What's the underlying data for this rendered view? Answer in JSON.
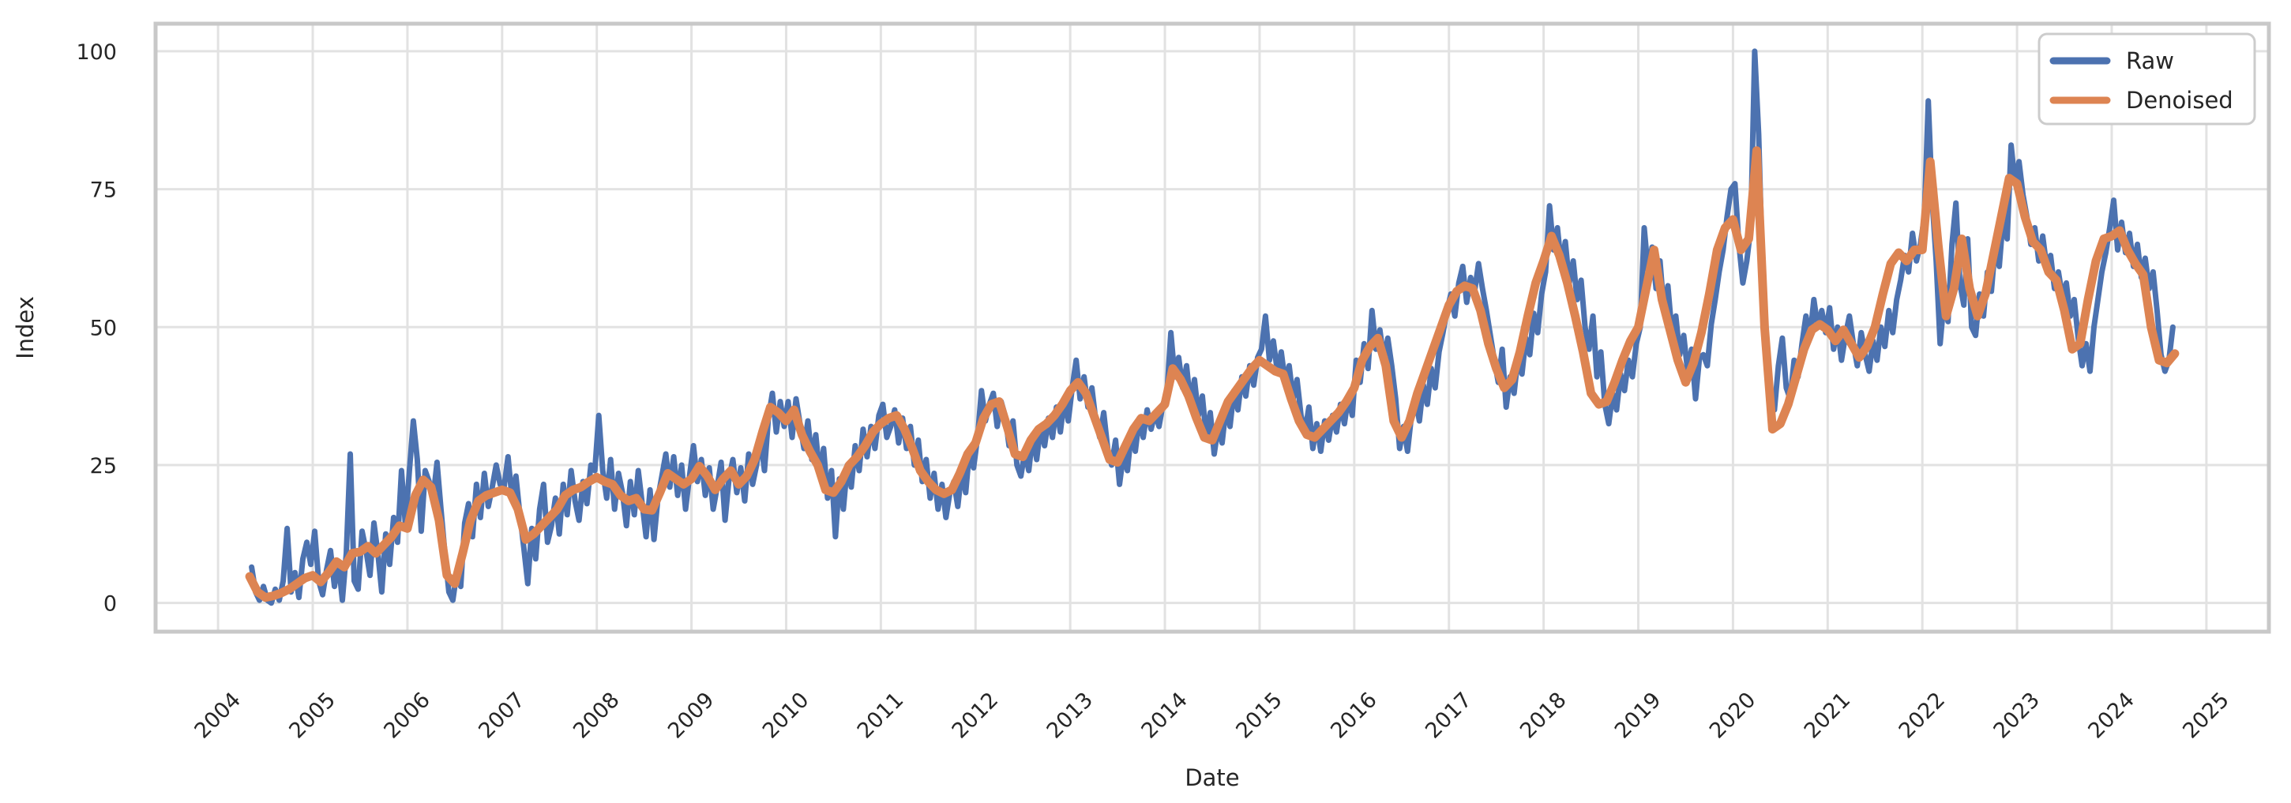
{
  "chart_data": {
    "type": "line",
    "title": "",
    "xlabel": "Date",
    "ylabel": "Index",
    "x_ticks": [
      2004,
      2005,
      2006,
      2007,
      2008,
      2009,
      2010,
      2011,
      2012,
      2013,
      2014,
      2015,
      2016,
      2017,
      2018,
      2019,
      2020,
      2021,
      2022,
      2023,
      2024,
      2025
    ],
    "y_ticks": [
      0,
      25,
      50,
      75,
      100
    ],
    "xlim": [
      2003.34,
      2025.66
    ],
    "ylim": [
      -5.2,
      105.0
    ],
    "grid": true,
    "legend_position": "upper right",
    "colors": {
      "background": "#ffffff",
      "grid": "#e2e2e2",
      "spine": "#c8c8c8",
      "text": "#262626"
    },
    "series": [
      {
        "name": "Raw",
        "color": "#4C72B0",
        "line_width": 7,
        "x_start": 2004.3542,
        "x_step": 0.0416667,
        "values": [
          6.5,
          2,
          0.5,
          3,
          0.5,
          0,
          2.5,
          0.5,
          4,
          13.5,
          2,
          5.5,
          1,
          8,
          11,
          7,
          13,
          4,
          1.5,
          6,
          9.5,
          3,
          7.5,
          0.5,
          9,
          27,
          4,
          2.5,
          13,
          9.5,
          5,
          14.5,
          9,
          2,
          12.5,
          7,
          15.5,
          11,
          24,
          14,
          24,
          33,
          26,
          13,
          24,
          22,
          19,
          25.5,
          17,
          9,
          2,
          0.5,
          5.5,
          3,
          14.5,
          18,
          12,
          21.5,
          15.5,
          23.5,
          17.5,
          21,
          25,
          21.5,
          21,
          26.5,
          19,
          23,
          16,
          10,
          3.5,
          13.5,
          8,
          17,
          21.5,
          11,
          14,
          19,
          12.5,
          21.5,
          16,
          24,
          18.5,
          15,
          22,
          18,
          25,
          24,
          34,
          24,
          19,
          26,
          17,
          23.5,
          20,
          14,
          22,
          16,
          24,
          18,
          12,
          20.5,
          11.5,
          19,
          23,
          27,
          21,
          26.5,
          19.5,
          25,
          17,
          23,
          28.5,
          22,
          26,
          19.5,
          24.5,
          17,
          21,
          25.5,
          15,
          22.5,
          26,
          20,
          24.5,
          18.5,
          27,
          21.5,
          25,
          30,
          24,
          33.5,
          38,
          31,
          36.5,
          32,
          36.5,
          30,
          37,
          32.5,
          28,
          33,
          26,
          30.5,
          23,
          28,
          19,
          24,
          12,
          22.5,
          17,
          25,
          21,
          28.5,
          24,
          31.5,
          26.5,
          32,
          28,
          34,
          36,
          30,
          32,
          35,
          29,
          33.5,
          28,
          32,
          25,
          29.5,
          22,
          26,
          19,
          23.5,
          17,
          21.5,
          15.5,
          20,
          22,
          17.5,
          24,
          20,
          28,
          24.5,
          30,
          38.5,
          33,
          36,
          38,
          32,
          36.5,
          34,
          28.5,
          33,
          25,
          23,
          27.5,
          24,
          30.5,
          26,
          32,
          28.5,
          33.5,
          30,
          35.5,
          31,
          37,
          33,
          39,
          44,
          37,
          41,
          35.5,
          39,
          33,
          30,
          34.5,
          28,
          25,
          29.5,
          21.5,
          27,
          24,
          31,
          27.5,
          33.5,
          30,
          35,
          31.5,
          34.5,
          32,
          36,
          38,
          49,
          41,
          44.5,
          39,
          43,
          36,
          40.5,
          34,
          37.5,
          30,
          34.5,
          27,
          32,
          29,
          35.5,
          32,
          38.5,
          35,
          41,
          37.5,
          43,
          39.5,
          44.5,
          46,
          52,
          44,
          47.5,
          42,
          45.5,
          40,
          43,
          37,
          40.5,
          34,
          31,
          35.5,
          28,
          32.5,
          27.5,
          33,
          29.5,
          34,
          31,
          36,
          32.5,
          37.5,
          34,
          44,
          40,
          47,
          42.5,
          53,
          46,
          49.5,
          44,
          48,
          43,
          37,
          28,
          32,
          27.5,
          34,
          37,
          33,
          39.5,
          36,
          42.5,
          39,
          45.5,
          49,
          53,
          56,
          52,
          58,
          61,
          54.5,
          59,
          56.5,
          61.5,
          57,
          53,
          48.5,
          44,
          40,
          46,
          35.5,
          41,
          38,
          44.5,
          41.5,
          48,
          45,
          52.5,
          49,
          56,
          60,
          72,
          64,
          68,
          61,
          65.5,
          58,
          62,
          55,
          58.5,
          50,
          46,
          52,
          41,
          45.5,
          36,
          32.5,
          38,
          35,
          41.5,
          38.5,
          44,
          41,
          47,
          50,
          68,
          60,
          64.5,
          57,
          62,
          53,
          57.5,
          49,
          52,
          45,
          48.5,
          42,
          46,
          37,
          44.5,
          45,
          43,
          50.5,
          55,
          60,
          64,
          70,
          75,
          76,
          65,
          58,
          62,
          68,
          100,
          85,
          60,
          48,
          38,
          35,
          43,
          48,
          39,
          37,
          44,
          41,
          47,
          52,
          48,
          55,
          50,
          53,
          49,
          53.5,
          46,
          50,
          44,
          48.5,
          52,
          47,
          43,
          49,
          45,
          42,
          47.5,
          44,
          50,
          46.5,
          53,
          49,
          55,
          58.5,
          63,
          60,
          67,
          62,
          65,
          70,
          91,
          73,
          62,
          47,
          55,
          51,
          65,
          72.5,
          58,
          54,
          66,
          50,
          48.5,
          56,
          52,
          60,
          56.5,
          65,
          61,
          70,
          66,
          83,
          76,
          80,
          74,
          70,
          65,
          68,
          62,
          66.5,
          61,
          63,
          57,
          60,
          55.5,
          58,
          52,
          55,
          48,
          43,
          47,
          42,
          50,
          55,
          60,
          63.5,
          68,
          73,
          64,
          69,
          63.5,
          67,
          61,
          65,
          59,
          62.5,
          57,
          60,
          53,
          45,
          42,
          44,
          50
        ]
      },
      {
        "name": "Denoised",
        "color": "#DD8452",
        "line_width": 11,
        "x_start": 2004.3333,
        "x_step": 0.0833333,
        "values": [
          4.8,
          2,
          1,
          1.3,
          1.8,
          2.5,
          3.5,
          4.5,
          5,
          3.8,
          5.5,
          7.5,
          6.5,
          9,
          9.3,
          10.3,
          9,
          10.5,
          12,
          14,
          13.5,
          19.5,
          22.3,
          21,
          15,
          5,
          3.5,
          9,
          15,
          18.5,
          19.5,
          20,
          20.5,
          20,
          17,
          11.5,
          12.5,
          14,
          15.5,
          17,
          19.5,
          20.5,
          21,
          22,
          22.8,
          22,
          21.5,
          19.5,
          18.5,
          19,
          17,
          16.8,
          20,
          23.5,
          22.5,
          21.5,
          22.5,
          24.8,
          23,
          20.5,
          22.5,
          24,
          21.5,
          23,
          26,
          31,
          35.5,
          34.5,
          33,
          35,
          30.5,
          27.5,
          25,
          20.5,
          20,
          22,
          25,
          26.5,
          28.5,
          31,
          32.5,
          33.5,
          34,
          31.5,
          28,
          24,
          22,
          20.5,
          19.8,
          20.5,
          23.5,
          27,
          29,
          33.5,
          36,
          36.5,
          32,
          27,
          26.5,
          29.5,
          31.5,
          32.5,
          34,
          36,
          38.5,
          40,
          38,
          34,
          30,
          26,
          25.5,
          28.5,
          31.5,
          33.5,
          33,
          34.5,
          36,
          42.5,
          40.5,
          37.5,
          33.5,
          30,
          29.5,
          33,
          36.5,
          38.5,
          40.5,
          42.5,
          44,
          43,
          42,
          41.5,
          37,
          33,
          30.5,
          30,
          31.5,
          33,
          34.5,
          36.5,
          39,
          44,
          46.5,
          48,
          43,
          33,
          30,
          33,
          38,
          42,
          46,
          50,
          54,
          56.5,
          57.5,
          57,
          53,
          47,
          42.5,
          39,
          40.5,
          45.5,
          52,
          58,
          62,
          66.5,
          63,
          58,
          52,
          45.5,
          38,
          36,
          36.5,
          40,
          44,
          47.5,
          50,
          57,
          64,
          55,
          49.5,
          44,
          40,
          43.5,
          49,
          56,
          64,
          68,
          69.5,
          64,
          66,
          82,
          50,
          31.5,
          32.5,
          36,
          41,
          46,
          49.5,
          50.5,
          49.5,
          47.5,
          49.5,
          47,
          44.5,
          46.5,
          50,
          56,
          61.5,
          63.5,
          62,
          64,
          64,
          80,
          65,
          52,
          57,
          66,
          57,
          52,
          56,
          63,
          70,
          77,
          76,
          70,
          65.5,
          64,
          60,
          58.5,
          53,
          46,
          47,
          55,
          62,
          66,
          66.5,
          67.5,
          64,
          61.5,
          59.5,
          50,
          44,
          43.5,
          45.2
        ]
      }
    ]
  }
}
